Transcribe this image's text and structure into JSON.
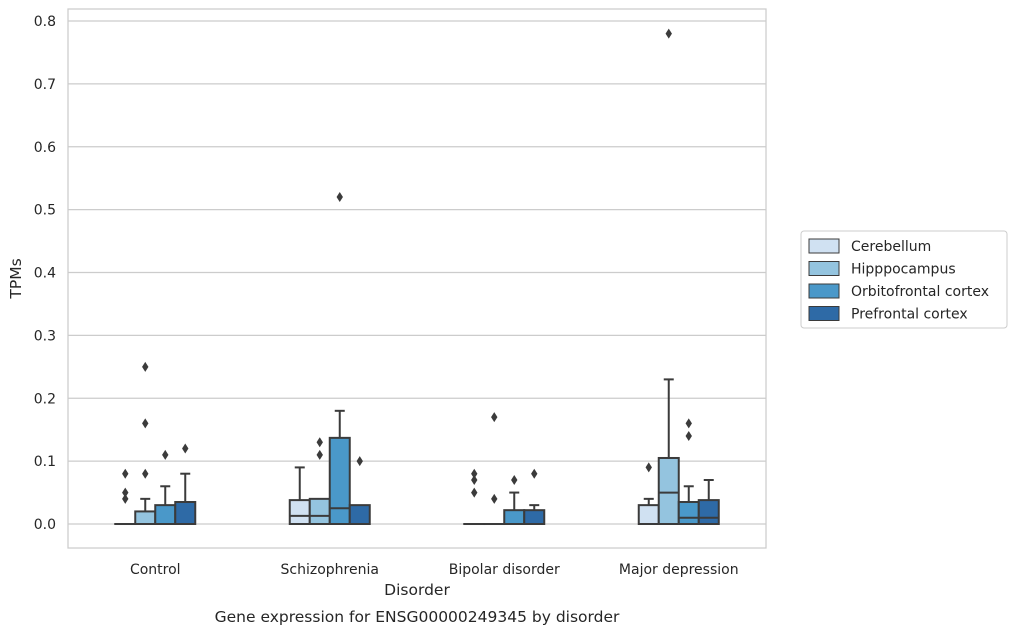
{
  "chart_data": {
    "type": "boxplot",
    "caption": "Gene expression for ENSG00000249345 by disorder",
    "xlabel": "Disorder",
    "ylabel": "TPMs",
    "ylim": [
      -0.04,
      0.82
    ],
    "yticks": [
      0.0,
      0.1,
      0.2,
      0.3,
      0.4,
      0.5,
      0.6,
      0.7,
      0.8
    ],
    "ytick_labels": [
      "0.0",
      "0.1",
      "0.2",
      "0.3",
      "0.4",
      "0.5",
      "0.6",
      "0.7",
      "0.8"
    ],
    "grid": "horizontal",
    "legend_position": "right",
    "categories": [
      "Control",
      "Schizophrenia",
      "Bipolar disorder",
      "Major depression"
    ],
    "series": [
      {
        "name": "Cerebellum",
        "color": "#d0e1f2",
        "boxes": [
          {
            "q1": 0.0,
            "median": 0.0,
            "q3": 0.0,
            "whislo": 0.0,
            "whishi": 0.0,
            "fliers": [
              0.04,
              0.05,
              0.08
            ]
          },
          {
            "q1": 0.0,
            "median": 0.013,
            "q3": 0.038,
            "whislo": 0.0,
            "whishi": 0.09,
            "fliers": []
          },
          {
            "q1": 0.0,
            "median": 0.0,
            "q3": 0.0,
            "whislo": 0.0,
            "whishi": 0.0,
            "fliers": [
              0.05,
              0.07,
              0.08
            ]
          },
          {
            "q1": 0.0,
            "median": 0.0,
            "q3": 0.03,
            "whislo": 0.0,
            "whishi": 0.04,
            "fliers": [
              0.09
            ]
          }
        ]
      },
      {
        "name": "Hipppocampus",
        "color": "#94c4df",
        "boxes": [
          {
            "q1": 0.0,
            "median": 0.0,
            "q3": 0.02,
            "whislo": 0.0,
            "whishi": 0.04,
            "fliers": [
              0.08,
              0.16,
              0.25
            ]
          },
          {
            "q1": 0.0,
            "median": 0.013,
            "q3": 0.04,
            "whislo": 0.0,
            "whishi": 0.04,
            "fliers": [
              0.11,
              0.13
            ]
          },
          {
            "q1": 0.0,
            "median": 0.0,
            "q3": 0.0,
            "whislo": 0.0,
            "whishi": 0.0,
            "fliers": [
              0.04,
              0.17
            ]
          },
          {
            "q1": 0.0,
            "median": 0.05,
            "q3": 0.105,
            "whislo": 0.0,
            "whishi": 0.23,
            "fliers": [
              0.78
            ]
          }
        ]
      },
      {
        "name": "Orbitofrontal cortex",
        "color": "#4a98c9",
        "boxes": [
          {
            "q1": 0.0,
            "median": 0.0,
            "q3": 0.03,
            "whislo": 0.0,
            "whishi": 0.06,
            "fliers": [
              0.11
            ]
          },
          {
            "q1": 0.0,
            "median": 0.025,
            "q3": 0.137,
            "whislo": 0.0,
            "whishi": 0.18,
            "fliers": [
              0.52
            ]
          },
          {
            "q1": 0.0,
            "median": 0.0,
            "q3": 0.022,
            "whislo": 0.0,
            "whishi": 0.05,
            "fliers": [
              0.07
            ]
          },
          {
            "q1": 0.0,
            "median": 0.01,
            "q3": 0.035,
            "whislo": 0.0,
            "whishi": 0.06,
            "fliers": [
              0.14,
              0.16
            ]
          }
        ]
      },
      {
        "name": "Prefrontal cortex",
        "color": "#2e6aa6",
        "boxes": [
          {
            "q1": 0.0,
            "median": 0.0,
            "q3": 0.035,
            "whislo": 0.0,
            "whishi": 0.08,
            "fliers": [
              0.12
            ]
          },
          {
            "q1": 0.0,
            "median": 0.0,
            "q3": 0.03,
            "whislo": 0.0,
            "whishi": 0.03,
            "fliers": [
              0.1
            ]
          },
          {
            "q1": 0.0,
            "median": 0.0,
            "q3": 0.022,
            "whislo": 0.0,
            "whishi": 0.03,
            "fliers": [
              0.08
            ]
          },
          {
            "q1": 0.0,
            "median": 0.01,
            "q3": 0.038,
            "whislo": 0.0,
            "whishi": 0.07,
            "fliers": []
          }
        ]
      }
    ]
  }
}
